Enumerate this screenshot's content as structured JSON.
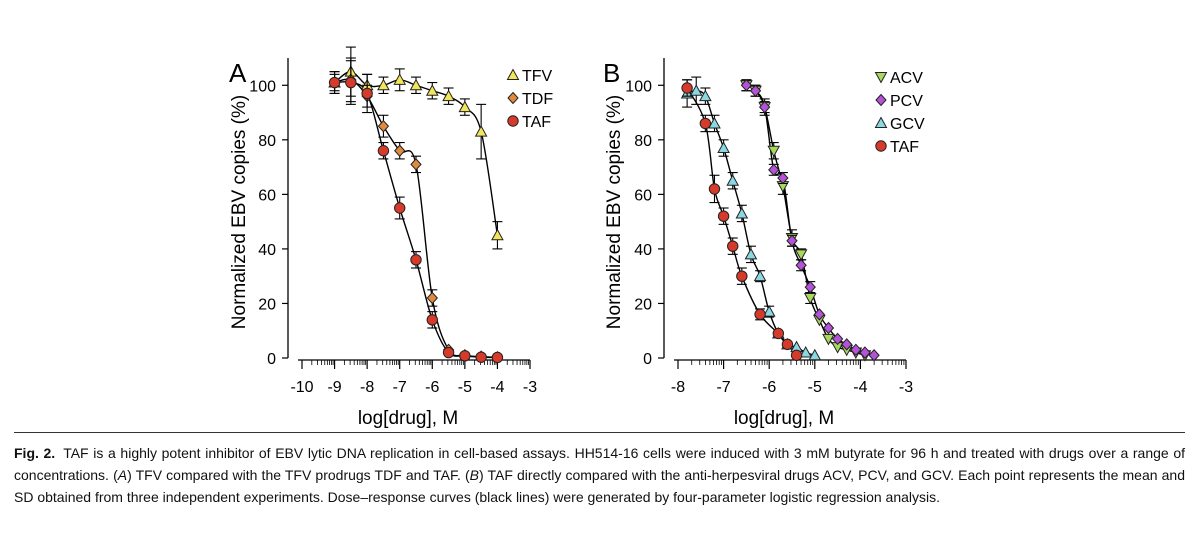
{
  "chart_data": [
    {
      "panel": "A",
      "type": "scatter",
      "xlabel": "log[drug], M",
      "ylabel": "Normalized EBV copies (%)",
      "xlim": [
        -10,
        -3
      ],
      "ylim": [
        0,
        110
      ],
      "xticks": [
        "-10",
        "-9",
        "-8",
        "-7",
        "-6",
        "-5",
        "-4",
        "-3"
      ],
      "yticks": [
        "0",
        "20",
        "40",
        "60",
        "80",
        "100"
      ],
      "legend_position": "top-right",
      "series": [
        {
          "name": "TFV",
          "marker": "triangle-up",
          "color": "#F2E55C",
          "x": [
            -9,
            -8.5,
            -8,
            -7.5,
            -7,
            -6.5,
            -6,
            -5.5,
            -5,
            -4.5,
            -4
          ],
          "y": [
            101,
            105,
            100,
            100,
            102,
            100,
            98,
            96,
            92,
            83,
            45
          ],
          "err": [
            3,
            9,
            4,
            3,
            4,
            3,
            3,
            3,
            3,
            10,
            5
          ]
        },
        {
          "name": "TDF",
          "marker": "diamond",
          "color": "#E08A3E",
          "x": [
            -9,
            -8.5,
            -8,
            -7.5,
            -7,
            -6.5,
            -6,
            -5.5,
            -5,
            -4.5,
            -4
          ],
          "y": [
            101,
            102,
            96,
            85,
            76,
            71,
            22,
            3,
            1,
            0.5,
            0.3
          ],
          "err": [
            4,
            8,
            4,
            4,
            3,
            3,
            3,
            1,
            0.5,
            0.5,
            0.3
          ]
        },
        {
          "name": "TAF",
          "marker": "circle",
          "color": "#D63A2A",
          "x": [
            -9,
            -8.5,
            -8,
            -7.5,
            -7,
            -6.5,
            -6,
            -5.5,
            -5,
            -4.5,
            -4
          ],
          "y": [
            101,
            101,
            97,
            76,
            55,
            36,
            14,
            2,
            0.8,
            0.3,
            0.2
          ],
          "err": [
            4,
            8,
            7,
            3,
            4,
            3,
            3,
            1,
            0.5,
            0.3,
            0.2
          ]
        }
      ]
    },
    {
      "panel": "B",
      "type": "scatter",
      "xlabel": "log[drug], M",
      "ylabel": "Normalized EBV copies (%)",
      "xlim": [
        -8,
        -3
      ],
      "ylim": [
        0,
        110
      ],
      "xticks": [
        "-8",
        "-7",
        "-6",
        "-5",
        "-4",
        "-3"
      ],
      "yticks": [
        "0",
        "20",
        "40",
        "60",
        "80",
        "100"
      ],
      "legend_position": "top-right",
      "series": [
        {
          "name": "ACV",
          "marker": "triangle-down",
          "color": "#A8D85E",
          "x": [
            -6.5,
            -6.3,
            -6.1,
            -5.9,
            -5.7,
            -5.5,
            -5.3,
            -5.1,
            -4.9,
            -4.7,
            -4.5,
            -4.3,
            -4.1,
            -3.9
          ],
          "y": [
            100,
            98,
            92,
            76,
            63,
            44,
            38,
            22,
            14,
            7,
            4,
            3,
            2,
            1
          ],
          "err": [
            2,
            2,
            3,
            3,
            3,
            3,
            2,
            2,
            1,
            1,
            1,
            1,
            0.5,
            0.5
          ]
        },
        {
          "name": "PCV",
          "marker": "diamond",
          "color": "#B452D8",
          "x": [
            -6.5,
            -6.3,
            -6.1,
            -5.9,
            -5.7,
            -5.5,
            -5.3,
            -5.1,
            -4.9,
            -4.7,
            -4.5,
            -4.3,
            -4.1,
            -3.9,
            -3.7
          ],
          "y": [
            100,
            98,
            92,
            69,
            66,
            43,
            34,
            26,
            16,
            11,
            7,
            5,
            3,
            2,
            1
          ],
          "err": [
            2,
            2,
            2,
            2,
            2,
            2,
            2,
            2,
            1,
            1,
            1,
            1,
            0.5,
            0.5,
            0.5
          ]
        },
        {
          "name": "GCV",
          "marker": "triangle-up",
          "color": "#8AD8E2",
          "x": [
            -7.8,
            -7.6,
            -7.4,
            -7.2,
            -7.0,
            -6.8,
            -6.6,
            -6.4,
            -6.2,
            -6.0,
            -5.8,
            -5.6,
            -5.4,
            -5.2,
            -5.0
          ],
          "y": [
            97,
            98,
            96,
            86,
            77,
            65,
            53,
            38,
            30,
            17,
            9,
            5,
            4,
            2,
            1
          ],
          "err": [
            5,
            5,
            3,
            3,
            3,
            3,
            3,
            3,
            2,
            2,
            1,
            1,
            1,
            0.5,
            0.5
          ]
        },
        {
          "name": "TAF",
          "marker": "circle",
          "color": "#D63A2A",
          "x": [
            -7.8,
            -7.4,
            -7.2,
            -7.0,
            -6.8,
            -6.6,
            -6.2,
            -5.8,
            -5.6,
            -5.4
          ],
          "y": [
            99,
            86,
            62,
            52,
            41,
            30,
            16,
            9,
            5,
            1
          ],
          "err": [
            3,
            3,
            5,
            3,
            3,
            3,
            2,
            1,
            1,
            0.5
          ]
        }
      ]
    }
  ],
  "caption": {
    "label": "Fig. 2.",
    "text": "TAF is a highly potent inhibitor of EBV lytic DNA replication in cell-based assays. HH514-16 cells were induced with 3 mM butyrate for 96 h and treated with drugs over a range of concentrations. (A) TFV compared with the TFV prodrugs TDF and TAF. (B) TAF directly compared with the anti-herpesviral drugs ACV, PCV, and GCV. Each point represents the mean and SD obtained from three independent experiments. Dose–response curves (black lines) were generated by four-parameter logistic regression analysis."
  }
}
